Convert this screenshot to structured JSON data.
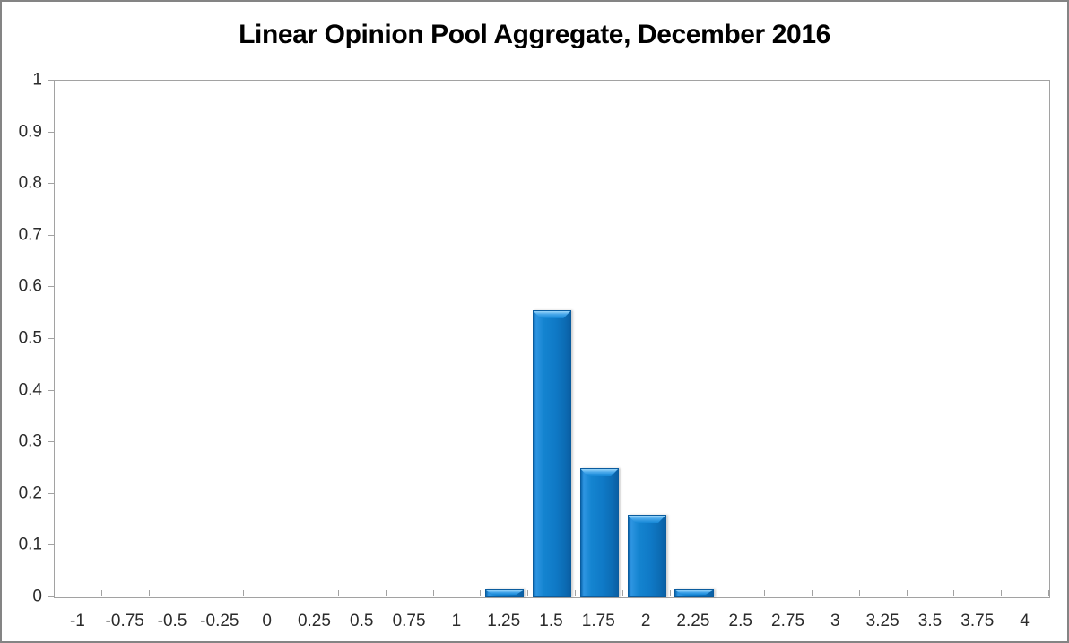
{
  "window": {
    "background": "#ffffff",
    "frame_border_color": "#848484"
  },
  "chart_data": {
    "type": "bar",
    "title": "Linear Opinion Pool Aggregate, December 2016",
    "xlabel": "",
    "ylabel": "",
    "categories": [
      "-1",
      "-0.75",
      "-0.5",
      "-0.25",
      "0",
      "0.25",
      "0.5",
      "0.75",
      "1",
      "1.25",
      "1.5",
      "1.75",
      "2",
      "2.25",
      "2.5",
      "2.75",
      "3",
      "3.25",
      "3.5",
      "3.75",
      "4"
    ],
    "values": [
      0,
      0,
      0,
      0,
      0,
      0,
      0,
      0,
      0,
      0.015,
      0.555,
      0.25,
      0.16,
      0.015,
      0,
      0,
      0,
      0,
      0,
      0,
      0
    ],
    "ylim": [
      0,
      1
    ],
    "ytick_step": 0.1,
    "ytick_labels": [
      "0",
      "0.1",
      "0.2",
      "0.3",
      "0.4",
      "0.5",
      "0.6",
      "0.7",
      "0.8",
      "0.9",
      "1"
    ],
    "grid": false,
    "legend_position": "none",
    "colors": {
      "bar_fill": "#0f79c6",
      "bar_highlight": "#9ad6fa",
      "bar_edge": "#0a5c9e",
      "axis_line": "#a2a2a2",
      "tick_label": "#2b2b2b",
      "title_text": "#000000"
    }
  }
}
